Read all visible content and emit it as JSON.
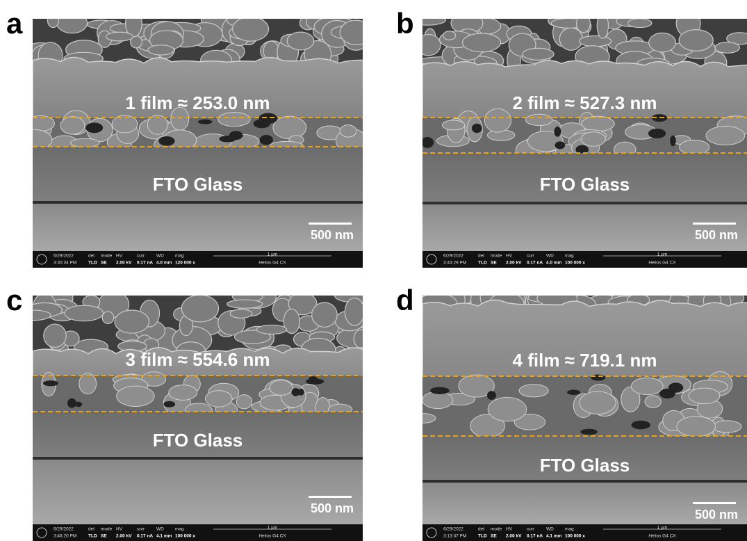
{
  "info_headers": [
    "det",
    "mode",
    "HV",
    "curr",
    "WD",
    "mag"
  ],
  "panels": [
    {
      "letter": "a",
      "film_label": "1 film ≈ 253.0 nm",
      "substrate": "FTO Glass",
      "scale_bar": "500 nm",
      "field_width": "1 µm",
      "instrument": "Helios G4 CX",
      "info": [
        "6/29/2022",
        "3:30:34 PM",
        "TLD",
        "SE",
        "2.00 kV",
        "0.17 nA",
        "4.0 mm",
        "120 000 x"
      ]
    },
    {
      "letter": "b",
      "film_label": "2 film ≈ 527.3 nm",
      "substrate": "FTO Glass",
      "scale_bar": "500 nm",
      "field_width": "1 µm",
      "instrument": "Helios G4 CX",
      "info": [
        "6/29/2022",
        "3:43:29 PM",
        "TLD",
        "SE",
        "2.00 kV",
        "0.17 nA",
        "4.0 mm",
        "100 000 x"
      ]
    },
    {
      "letter": "c",
      "film_label": "3 film ≈ 554.6 nm",
      "substrate": "FTO Glass",
      "scale_bar": "500 nm",
      "field_width": "1 µm",
      "instrument": "Helios G4 CX",
      "info": [
        "6/29/2022",
        "3:46:20 PM",
        "TLD",
        "SE",
        "2.00 kV",
        "0.17 nA",
        "4.1 mm",
        "100 000 x"
      ]
    },
    {
      "letter": "d",
      "film_label": "4 film ≈ 719.1 nm",
      "substrate": "FTO Glass",
      "scale_bar": "500 nm",
      "field_width": "1 µm",
      "instrument": "Helios G4 CX",
      "info": [
        "6/29/2022",
        "3:13:37 PM",
        "TLD",
        "SE",
        "2.00 kV",
        "0.17 nA",
        "4.1 mm",
        "100 000 x"
      ]
    }
  ]
}
